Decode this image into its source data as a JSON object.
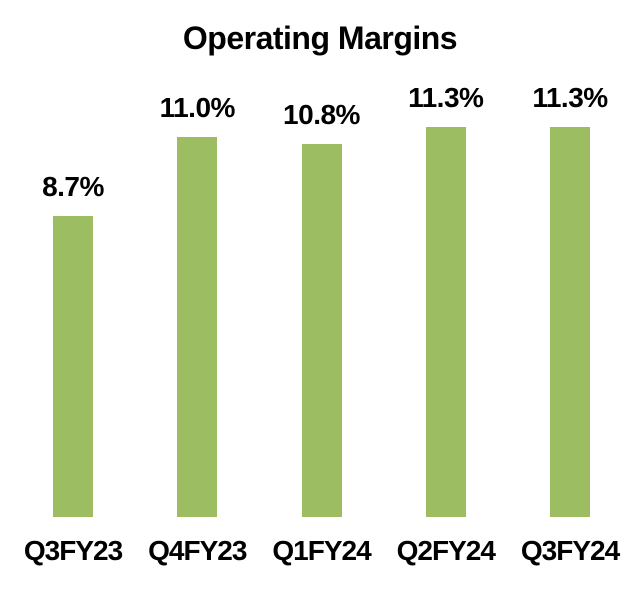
{
  "chart_data": {
    "type": "bar",
    "title": "Operating Margins",
    "categories": [
      "Q3FY23",
      "Q4FY23",
      "Q1FY24",
      "Q2FY24",
      "Q3FY24"
    ],
    "values": [
      8.7,
      11.0,
      10.8,
      11.3,
      11.3
    ],
    "data_labels": [
      "8.7%",
      "11.0%",
      "10.8%",
      "11.3%",
      "11.3%"
    ],
    "xlabel": "",
    "ylabel": "",
    "ylim": [
      0,
      11.5
    ],
    "grid": false,
    "legend": false,
    "axes_visible": false,
    "data_labels_shown": true,
    "bar_color": "#9DBD62",
    "text_color": "#000000",
    "background_color": "#FFFFFF"
  }
}
